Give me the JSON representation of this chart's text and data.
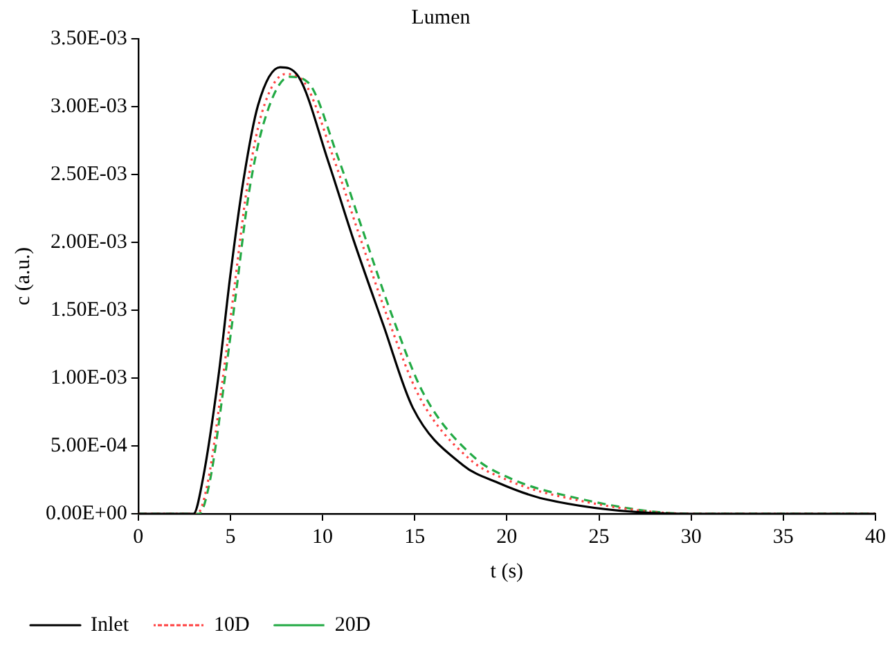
{
  "chart_data": {
    "type": "line",
    "title": "Lumen",
    "xlabel": "t (s)",
    "ylabel": "c (a.u.)",
    "xlim": [
      0,
      40
    ],
    "xticks": [
      0,
      5,
      10,
      15,
      20,
      25,
      30,
      35,
      40
    ],
    "ylim": [
      0,
      0.0035
    ],
    "yticks": [
      {
        "value": 0,
        "label": "0.00E+00"
      },
      {
        "value": 0.0005,
        "label": "5.00E-04"
      },
      {
        "value": 0.001,
        "label": "1.00E-03"
      },
      {
        "value": 0.0015,
        "label": "1.50E-03"
      },
      {
        "value": 0.002,
        "label": "2.00E-03"
      },
      {
        "value": 0.0025,
        "label": "2.50E-03"
      },
      {
        "value": 0.003,
        "label": "3.00E-03"
      },
      {
        "value": 0.0035,
        "label": "3.50E-03"
      }
    ],
    "grid": false,
    "legend": "bottom",
    "marker": "none",
    "series": [
      {
        "name": "Inlet",
        "color": "#000000",
        "line_style": "solid",
        "x": [
          0,
          3,
          3.5,
          4.35,
          5,
          5.7,
          6.5,
          7.7,
          8.7,
          10.3,
          11.65,
          13.3,
          14.9,
          17.6,
          19.5,
          22,
          30,
          35,
          40
        ],
        "values": [
          0,
          0,
          0.00025,
          0.00101,
          0.00176,
          0.00245,
          0.00301,
          0.00329,
          0.00322,
          0.0026,
          0.00203,
          0.00139,
          0.00078,
          0.00036,
          0.00023,
          0.00011,
          0,
          0,
          0
        ]
      },
      {
        "name": "10D",
        "color": "#ff4040",
        "line_style": "dotted",
        "x": [
          0,
          3.2,
          3.8,
          4.6,
          5.2,
          5.9,
          6.7,
          8.0,
          9.0,
          10.6,
          12.0,
          13.6,
          15.3,
          18,
          20,
          22.5,
          30,
          35,
          40
        ],
        "values": [
          0,
          0,
          0.00025,
          0.00101,
          0.00165,
          0.0024,
          0.00295,
          0.00324,
          0.00318,
          0.00262,
          0.00205,
          0.00142,
          0.00085,
          0.0004,
          0.00025,
          0.00014,
          0,
          0,
          0
        ]
      },
      {
        "name": "20D",
        "color": "#22aa44",
        "line_style": "dashed",
        "x": [
          0,
          3.3,
          3.9,
          4.7,
          5.3,
          6.0,
          6.9,
          8.2,
          9.2,
          10.8,
          12.2,
          13.8,
          15.5,
          18.2,
          20.2,
          22.7,
          30,
          35,
          40
        ],
        "values": [
          0,
          0,
          0.00025,
          0.001,
          0.00162,
          0.00236,
          0.00292,
          0.00322,
          0.00318,
          0.00264,
          0.00208,
          0.00145,
          0.00088,
          0.00042,
          0.00026,
          0.00015,
          0,
          0,
          0
        ]
      }
    ]
  }
}
